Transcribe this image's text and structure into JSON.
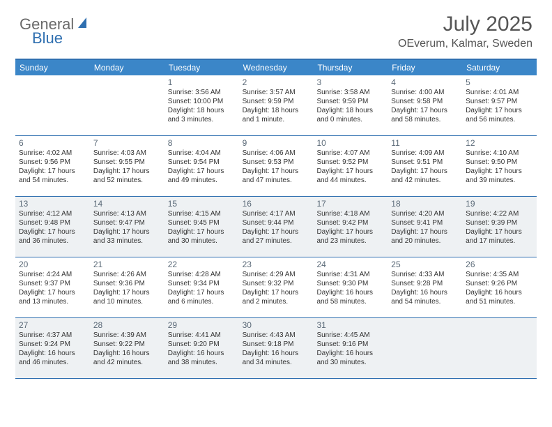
{
  "brand": {
    "general": "General",
    "blue": "Blue"
  },
  "title": "July 2025",
  "location": "OEverum, Kalmar, Sweden",
  "colors": {
    "header_bar": "#3b86c8",
    "header_border": "#2f6fb0",
    "shaded_bg": "#eef1f3",
    "text": "#333333",
    "daynum": "#5b6a78",
    "title_text": "#555555",
    "logo_gray": "#6a6a6a",
    "logo_blue": "#2f6fb0"
  },
  "weekdays": [
    "Sunday",
    "Monday",
    "Tuesday",
    "Wednesday",
    "Thursday",
    "Friday",
    "Saturday"
  ],
  "weeks": [
    [
      {
        "num": "",
        "sunrise": "",
        "sunset": "",
        "daylight": "",
        "shaded": false
      },
      {
        "num": "",
        "sunrise": "",
        "sunset": "",
        "daylight": "",
        "shaded": false
      },
      {
        "num": "1",
        "sunrise": "Sunrise: 3:56 AM",
        "sunset": "Sunset: 10:00 PM",
        "daylight": "Daylight: 18 hours and 3 minutes.",
        "shaded": false
      },
      {
        "num": "2",
        "sunrise": "Sunrise: 3:57 AM",
        "sunset": "Sunset: 9:59 PM",
        "daylight": "Daylight: 18 hours and 1 minute.",
        "shaded": false
      },
      {
        "num": "3",
        "sunrise": "Sunrise: 3:58 AM",
        "sunset": "Sunset: 9:59 PM",
        "daylight": "Daylight: 18 hours and 0 minutes.",
        "shaded": false
      },
      {
        "num": "4",
        "sunrise": "Sunrise: 4:00 AM",
        "sunset": "Sunset: 9:58 PM",
        "daylight": "Daylight: 17 hours and 58 minutes.",
        "shaded": false
      },
      {
        "num": "5",
        "sunrise": "Sunrise: 4:01 AM",
        "sunset": "Sunset: 9:57 PM",
        "daylight": "Daylight: 17 hours and 56 minutes.",
        "shaded": false
      }
    ],
    [
      {
        "num": "6",
        "sunrise": "Sunrise: 4:02 AM",
        "sunset": "Sunset: 9:56 PM",
        "daylight": "Daylight: 17 hours and 54 minutes.",
        "shaded": false
      },
      {
        "num": "7",
        "sunrise": "Sunrise: 4:03 AM",
        "sunset": "Sunset: 9:55 PM",
        "daylight": "Daylight: 17 hours and 52 minutes.",
        "shaded": false
      },
      {
        "num": "8",
        "sunrise": "Sunrise: 4:04 AM",
        "sunset": "Sunset: 9:54 PM",
        "daylight": "Daylight: 17 hours and 49 minutes.",
        "shaded": false
      },
      {
        "num": "9",
        "sunrise": "Sunrise: 4:06 AM",
        "sunset": "Sunset: 9:53 PM",
        "daylight": "Daylight: 17 hours and 47 minutes.",
        "shaded": false
      },
      {
        "num": "10",
        "sunrise": "Sunrise: 4:07 AM",
        "sunset": "Sunset: 9:52 PM",
        "daylight": "Daylight: 17 hours and 44 minutes.",
        "shaded": false
      },
      {
        "num": "11",
        "sunrise": "Sunrise: 4:09 AM",
        "sunset": "Sunset: 9:51 PM",
        "daylight": "Daylight: 17 hours and 42 minutes.",
        "shaded": false
      },
      {
        "num": "12",
        "sunrise": "Sunrise: 4:10 AM",
        "sunset": "Sunset: 9:50 PM",
        "daylight": "Daylight: 17 hours and 39 minutes.",
        "shaded": false
      }
    ],
    [
      {
        "num": "13",
        "sunrise": "Sunrise: 4:12 AM",
        "sunset": "Sunset: 9:48 PM",
        "daylight": "Daylight: 17 hours and 36 minutes.",
        "shaded": true
      },
      {
        "num": "14",
        "sunrise": "Sunrise: 4:13 AM",
        "sunset": "Sunset: 9:47 PM",
        "daylight": "Daylight: 17 hours and 33 minutes.",
        "shaded": true
      },
      {
        "num": "15",
        "sunrise": "Sunrise: 4:15 AM",
        "sunset": "Sunset: 9:45 PM",
        "daylight": "Daylight: 17 hours and 30 minutes.",
        "shaded": true
      },
      {
        "num": "16",
        "sunrise": "Sunrise: 4:17 AM",
        "sunset": "Sunset: 9:44 PM",
        "daylight": "Daylight: 17 hours and 27 minutes.",
        "shaded": true
      },
      {
        "num": "17",
        "sunrise": "Sunrise: 4:18 AM",
        "sunset": "Sunset: 9:42 PM",
        "daylight": "Daylight: 17 hours and 23 minutes.",
        "shaded": true
      },
      {
        "num": "18",
        "sunrise": "Sunrise: 4:20 AM",
        "sunset": "Sunset: 9:41 PM",
        "daylight": "Daylight: 17 hours and 20 minutes.",
        "shaded": true
      },
      {
        "num": "19",
        "sunrise": "Sunrise: 4:22 AM",
        "sunset": "Sunset: 9:39 PM",
        "daylight": "Daylight: 17 hours and 17 minutes.",
        "shaded": true
      }
    ],
    [
      {
        "num": "20",
        "sunrise": "Sunrise: 4:24 AM",
        "sunset": "Sunset: 9:37 PM",
        "daylight": "Daylight: 17 hours and 13 minutes.",
        "shaded": false
      },
      {
        "num": "21",
        "sunrise": "Sunrise: 4:26 AM",
        "sunset": "Sunset: 9:36 PM",
        "daylight": "Daylight: 17 hours and 10 minutes.",
        "shaded": false
      },
      {
        "num": "22",
        "sunrise": "Sunrise: 4:28 AM",
        "sunset": "Sunset: 9:34 PM",
        "daylight": "Daylight: 17 hours and 6 minutes.",
        "shaded": false
      },
      {
        "num": "23",
        "sunrise": "Sunrise: 4:29 AM",
        "sunset": "Sunset: 9:32 PM",
        "daylight": "Daylight: 17 hours and 2 minutes.",
        "shaded": false
      },
      {
        "num": "24",
        "sunrise": "Sunrise: 4:31 AM",
        "sunset": "Sunset: 9:30 PM",
        "daylight": "Daylight: 16 hours and 58 minutes.",
        "shaded": false
      },
      {
        "num": "25",
        "sunrise": "Sunrise: 4:33 AM",
        "sunset": "Sunset: 9:28 PM",
        "daylight": "Daylight: 16 hours and 54 minutes.",
        "shaded": false
      },
      {
        "num": "26",
        "sunrise": "Sunrise: 4:35 AM",
        "sunset": "Sunset: 9:26 PM",
        "daylight": "Daylight: 16 hours and 51 minutes.",
        "shaded": false
      }
    ],
    [
      {
        "num": "27",
        "sunrise": "Sunrise: 4:37 AM",
        "sunset": "Sunset: 9:24 PM",
        "daylight": "Daylight: 16 hours and 46 minutes.",
        "shaded": true
      },
      {
        "num": "28",
        "sunrise": "Sunrise: 4:39 AM",
        "sunset": "Sunset: 9:22 PM",
        "daylight": "Daylight: 16 hours and 42 minutes.",
        "shaded": true
      },
      {
        "num": "29",
        "sunrise": "Sunrise: 4:41 AM",
        "sunset": "Sunset: 9:20 PM",
        "daylight": "Daylight: 16 hours and 38 minutes.",
        "shaded": true
      },
      {
        "num": "30",
        "sunrise": "Sunrise: 4:43 AM",
        "sunset": "Sunset: 9:18 PM",
        "daylight": "Daylight: 16 hours and 34 minutes.",
        "shaded": true
      },
      {
        "num": "31",
        "sunrise": "Sunrise: 4:45 AM",
        "sunset": "Sunset: 9:16 PM",
        "daylight": "Daylight: 16 hours and 30 minutes.",
        "shaded": true
      },
      {
        "num": "",
        "sunrise": "",
        "sunset": "",
        "daylight": "",
        "shaded": true
      },
      {
        "num": "",
        "sunrise": "",
        "sunset": "",
        "daylight": "",
        "shaded": true
      }
    ]
  ]
}
